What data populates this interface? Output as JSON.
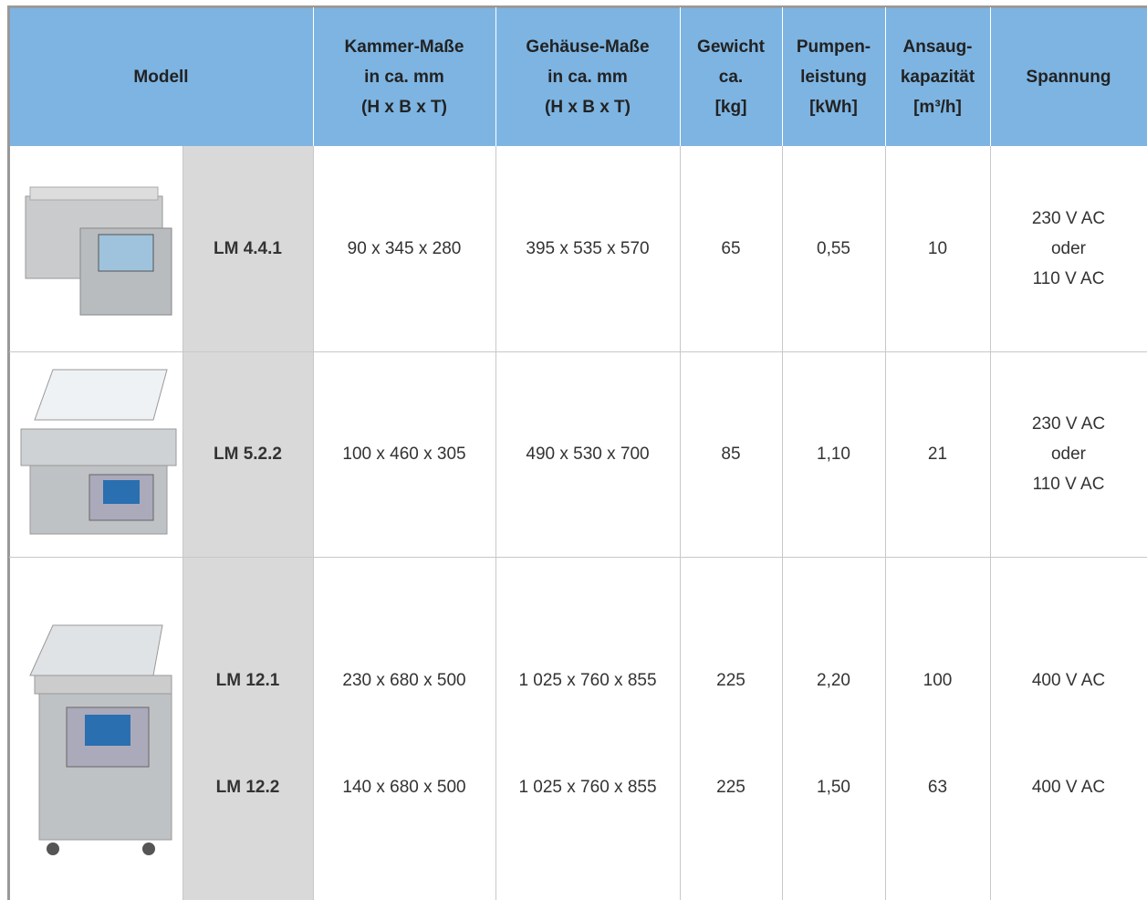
{
  "header": {
    "cells": [
      [
        "Modell"
      ],
      [
        "Kammer-Maße",
        "in ca. mm",
        "(H x B x T)"
      ],
      [
        "Gehäuse-Maße",
        "in ca. mm",
        "(H x B x T)"
      ],
      [
        "Gewicht",
        "ca.",
        "[kg]"
      ],
      [
        "Pumpen-",
        "leistung",
        "[kWh]"
      ],
      [
        "Ansaug-",
        "kapazität",
        "[m³/h]"
      ],
      [
        "Spannung"
      ]
    ]
  },
  "rows": [
    {
      "lines": [
        {
          "model": "LM 4.4.1",
          "cells": [
            [
              "90 x 345 x 280"
            ],
            [
              "395 x 535 x 570"
            ],
            [
              "65"
            ],
            [
              "0,55"
            ],
            [
              "10"
            ],
            [
              "230 V AC",
              "oder",
              "110 V AC"
            ]
          ]
        }
      ]
    },
    {
      "lines": [
        {
          "model": "LM 5.2.2",
          "cells": [
            [
              "100 x 460 x 305"
            ],
            [
              "490 x 530 x 700"
            ],
            [
              "85"
            ],
            [
              "1,10"
            ],
            [
              "21"
            ],
            [
              "230 V AC",
              "oder",
              "110 V AC"
            ]
          ]
        }
      ]
    },
    {
      "lines": [
        {
          "model": "LM 12.1",
          "cells": [
            [
              "230 x 680 x 500"
            ],
            [
              "1 025 x 760 x 855"
            ],
            [
              "225"
            ],
            [
              "2,20"
            ],
            [
              "100"
            ],
            [
              "400 V AC"
            ]
          ]
        },
        {
          "model": "LM 12.2",
          "cells": [
            [
              "140 x 680 x 500"
            ],
            [
              "1 025 x 760 x 855"
            ],
            [
              "225"
            ],
            [
              "1,50"
            ],
            [
              "63"
            ],
            [
              "400 V AC"
            ]
          ]
        }
      ]
    }
  ]
}
